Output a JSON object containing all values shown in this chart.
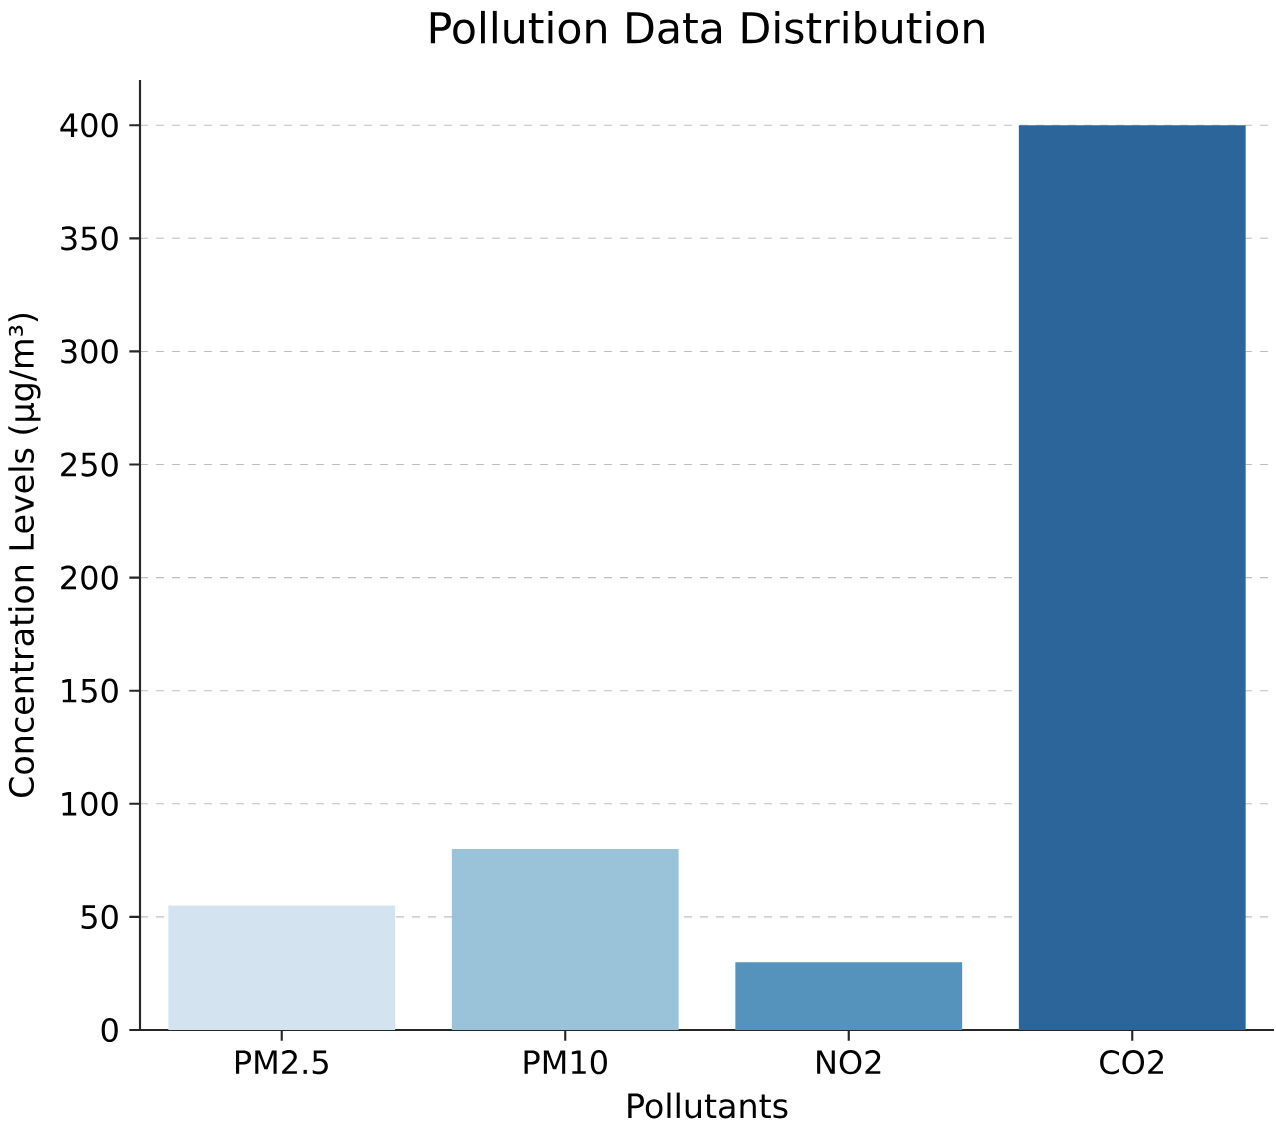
{
  "chart_data": {
    "type": "bar",
    "title": "Pollution Data Distribution",
    "xlabel": "Pollutants",
    "ylabel": "Concentration Levels (µg/m³)",
    "categories": [
      "PM2.5",
      "PM10",
      "NO2",
      "CO2"
    ],
    "values": [
      55,
      80,
      30,
      400
    ],
    "colors": [
      "#d3e3f0",
      "#9ac3d9",
      "#5593bd",
      "#2b6599"
    ],
    "ylim": [
      0,
      420
    ],
    "yticks": [
      0,
      50,
      100,
      150,
      200,
      250,
      300,
      350,
      400
    ],
    "grid": "y"
  }
}
